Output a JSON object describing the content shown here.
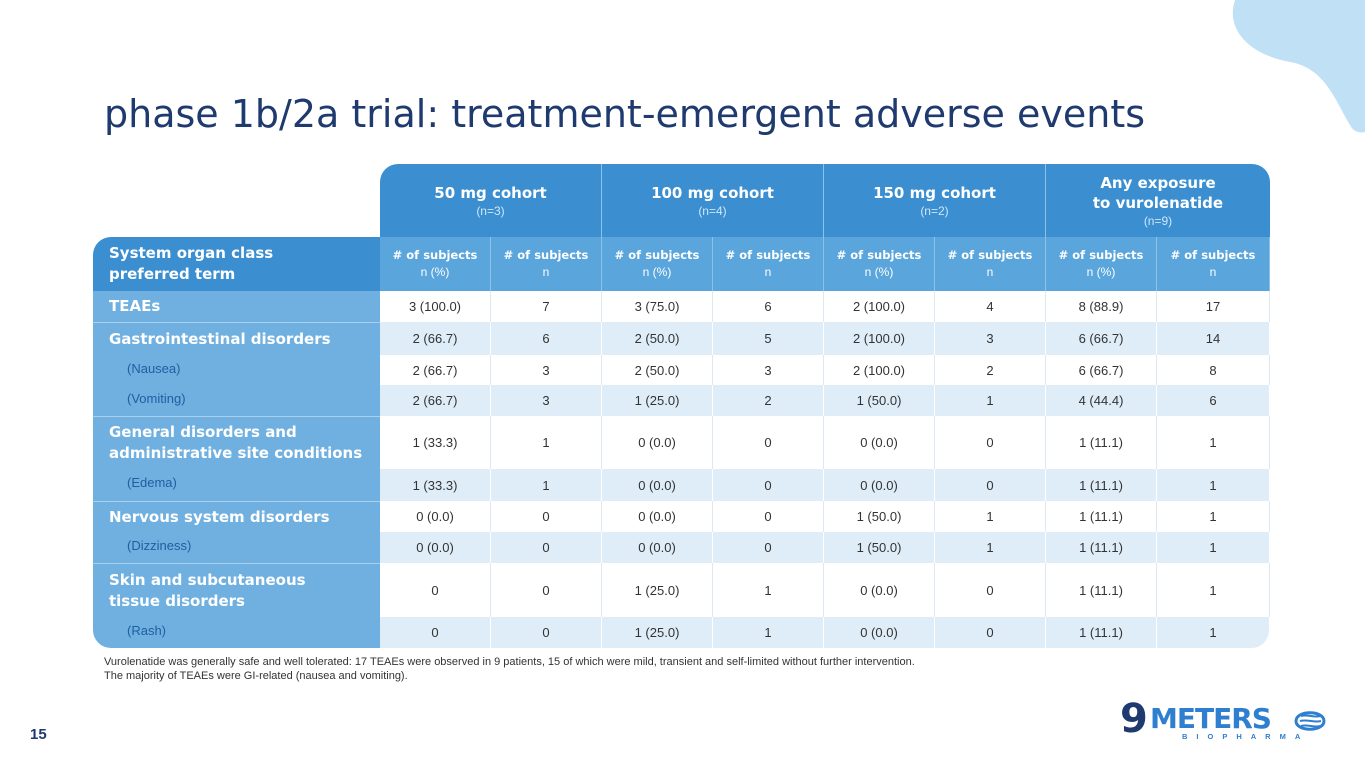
{
  "title": "phase 1b/2a trial: treatment-emergent adverse events",
  "page_number": "15",
  "cohorts": [
    {
      "name": "50 mg cohort",
      "n": "(n=3)"
    },
    {
      "name": "100 mg cohort",
      "n": "(n=4)"
    },
    {
      "name": "150 mg cohort",
      "n": "(n=2)"
    },
    {
      "name_line1": "Any exposure",
      "name_line2": "to vurolenatide",
      "n": "(n=9)"
    }
  ],
  "row_header": {
    "line1": "System organ class",
    "line2": "preferred term"
  },
  "col_heads": [
    {
      "l1": "# of subjects",
      "l2": "n (%)"
    },
    {
      "l1": "# of subjects",
      "l2": "n"
    },
    {
      "l1": "# of subjects",
      "l2": "n (%)"
    },
    {
      "l1": "# of subjects",
      "l2": "n"
    },
    {
      "l1": "# of subjects",
      "l2": "n (%)"
    },
    {
      "l1": "# of subjects",
      "l2": "n"
    },
    {
      "l1": "# of subjects",
      "l2": "n (%)"
    },
    {
      "l1": "# of subjects",
      "l2": "n"
    }
  ],
  "rows": [
    {
      "label": "TEAEs",
      "kind": "soc",
      "values": [
        "3 (100.0)",
        "7",
        "3 (75.0)",
        "6",
        "2 (100.0)",
        "4",
        "8 (88.9)",
        "17"
      ]
    },
    {
      "label": "Gastrointestinal disorders",
      "kind": "soc",
      "values": [
        "2 (66.7)",
        "6",
        "2 (50.0)",
        "5",
        "2 (100.0)",
        "3",
        "6 (66.7)",
        "14"
      ]
    },
    {
      "label": "(Nausea)",
      "kind": "pt",
      "values": [
        "2 (66.7)",
        "3",
        "2 (50.0)",
        "3",
        "2 (100.0)",
        "2",
        "6 (66.7)",
        "8"
      ]
    },
    {
      "label": "(Vomiting)",
      "kind": "pt",
      "values": [
        "2 (66.7)",
        "3",
        "1 (25.0)",
        "2",
        "1 (50.0)",
        "1",
        "4 (44.4)",
        "6"
      ]
    },
    {
      "label_line1": "General disorders and",
      "label_line2": "administrative site conditions",
      "kind": "soc",
      "values": [
        "1 (33.3)",
        "1",
        "0 (0.0)",
        "0",
        "0 (0.0)",
        "0",
        "1 (11.1)",
        "1"
      ]
    },
    {
      "label": "(Edema)",
      "kind": "pt",
      "values": [
        "1 (33.3)",
        "1",
        "0 (0.0)",
        "0",
        "0 (0.0)",
        "0",
        "1 (11.1)",
        "1"
      ]
    },
    {
      "label": "Nervous system disorders",
      "kind": "soc",
      "values": [
        "0 (0.0)",
        "0",
        "0 (0.0)",
        "0",
        "1 (50.0)",
        "1",
        "1 (11.1)",
        "1"
      ]
    },
    {
      "label": "(Dizziness)",
      "kind": "pt",
      "values": [
        "0 (0.0)",
        "0",
        "0 (0.0)",
        "0",
        "1 (50.0)",
        "1",
        "1 (11.1)",
        "1"
      ]
    },
    {
      "label_line1": "Skin and subcutaneous",
      "label_line2": "tissue disorders",
      "kind": "soc",
      "values": [
        "0",
        "0",
        "1 (25.0)",
        "1",
        "0 (0.0)",
        "0",
        "1 (11.1)",
        "1"
      ]
    },
    {
      "label": "(Rash)",
      "kind": "pt",
      "values": [
        "0",
        "0",
        "1 (25.0)",
        "1",
        "0 (0.0)",
        "0",
        "1 (11.1)",
        "1"
      ]
    }
  ],
  "footnote": {
    "line1": "Vurolenatide was generally safe and well tolerated: 17 TEAEs were observed in 9 patients, 15 of which were mild, transient and self-limited without further intervention.",
    "line2": "The majority of TEAEs were GI-related (nausea and vomiting)."
  },
  "logo": {
    "nine": "9",
    "name": "METERS",
    "tagline": "BIOPHARMA"
  },
  "colors": {
    "title": "#1f3a6e",
    "header": "#3b8fd0",
    "subheader": "#5aa5db",
    "label_col": "#6fb0e0",
    "stripe": "#deedf8",
    "blob": "#bfe0f5"
  }
}
